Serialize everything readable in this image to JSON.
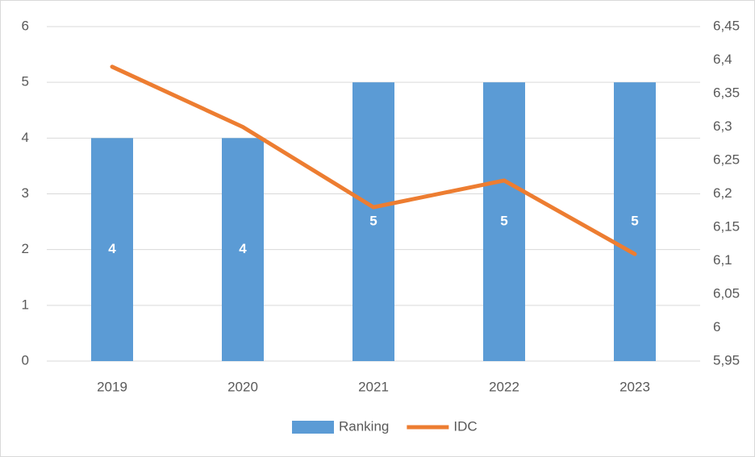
{
  "chart_data": {
    "type": "bar+line",
    "categories": [
      "2019",
      "2020",
      "2021",
      "2022",
      "2023"
    ],
    "series": [
      {
        "name": "Ranking",
        "type": "bar",
        "color": "#5b9bd5",
        "axis": "y",
        "values": [
          4,
          4,
          5,
          5,
          5
        ]
      },
      {
        "name": "IDC",
        "type": "line",
        "color": "#ed7d31",
        "axis": "y2",
        "values": [
          6.39,
          6.3,
          6.18,
          6.22,
          6.11
        ]
      }
    ],
    "ylim": [
      0,
      6
    ],
    "yticks": [
      0,
      1,
      2,
      3,
      4,
      5,
      6
    ],
    "y2lim": [
      5.95,
      6.45
    ],
    "y2ticks": [
      {
        "value": 5.95,
        "label": "5,95"
      },
      6,
      {
        "value": 6.05,
        "label": "6,05"
      },
      {
        "value": 6.1,
        "label": "6,1"
      },
      {
        "value": 6.15,
        "label": "6,15"
      },
      {
        "value": 6.2,
        "label": "6,2"
      },
      {
        "value": 6.25,
        "label": "6,25"
      },
      {
        "value": 6.3,
        "label": "6,3"
      },
      {
        "value": 6.35,
        "label": "6,35"
      },
      {
        "value": 6.4,
        "label": "6,4"
      },
      {
        "value": 6.45,
        "label": "6,45"
      }
    ],
    "grid": true,
    "legend": "bottom"
  }
}
